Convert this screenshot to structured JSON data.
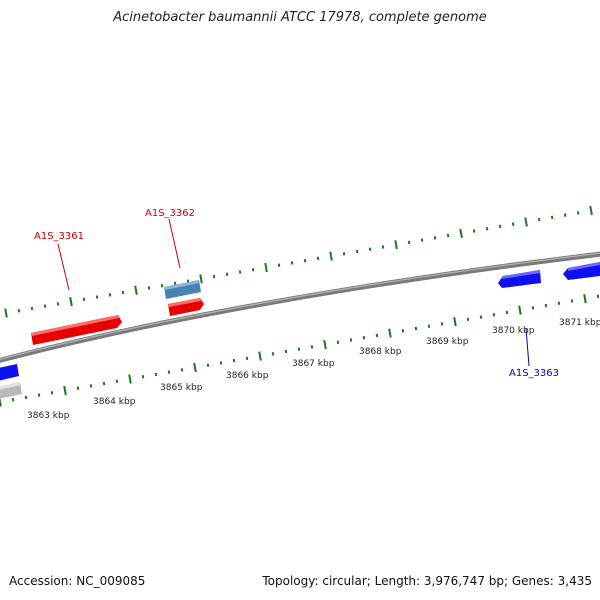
{
  "title": "Acinetobacter baumannii ATCC 17978, complete genome",
  "accession": "Accession: NC_009085",
  "stats": "Topology: circular; Length: 3,976,747 bp; Genes: 3,435",
  "colors": {
    "backbone": "#808080",
    "ticks": "#1a7a1a",
    "gene_forward": "#e00000",
    "gene_reverse": "#0000ee",
    "gene_other": "#4682b4",
    "gene_grey": "#b0b0b0"
  },
  "scale_labels": [
    "3863 kbp",
    "3864 kbp",
    "3865 kbp",
    "3866 kbp",
    "3867 kbp",
    "3868 kbp",
    "3869 kbp",
    "3870 kbp",
    "3871 kbp"
  ],
  "gene_labels": [
    {
      "text": "A1S_3361",
      "color": "#cc0000"
    },
    {
      "text": "A1S_3362",
      "color": "#cc0000"
    },
    {
      "text": "A1S_3363",
      "color": "#0000cc"
    }
  ]
}
